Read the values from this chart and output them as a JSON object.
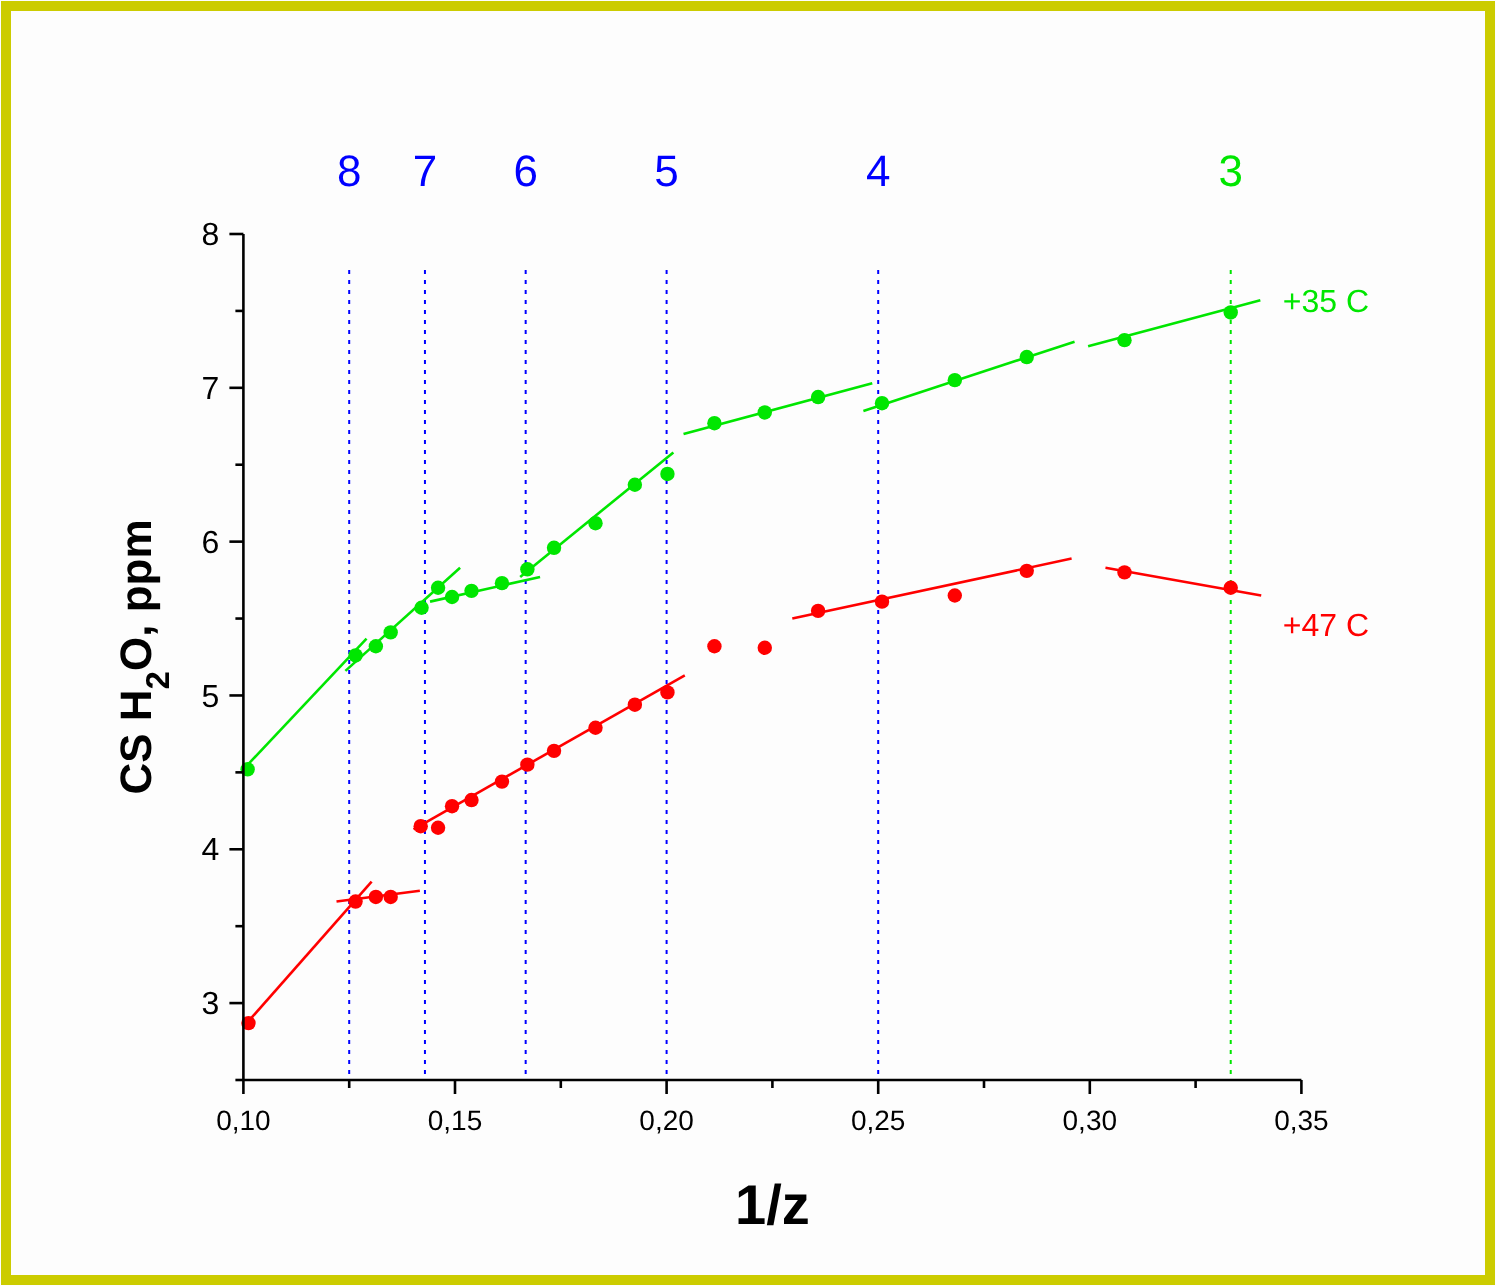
{
  "chart_data": {
    "type": "scatter",
    "xlabel": "1/z",
    "ylabel": "CS H$_{2}$O,  ppm",
    "xlim": [
      0.1,
      0.35
    ],
    "ylim": [
      2.5,
      8
    ],
    "xticks": [
      {
        "value": 0.1,
        "label": "0,10"
      },
      {
        "value": 0.125,
        "label": null
      },
      {
        "value": 0.15,
        "label": "0,15"
      },
      {
        "value": 0.175,
        "label": null
      },
      {
        "value": 0.2,
        "label": "0,20"
      },
      {
        "value": 0.225,
        "label": null
      },
      {
        "value": 0.25,
        "label": "0,25"
      },
      {
        "value": 0.275,
        "label": null
      },
      {
        "value": 0.3,
        "label": "0,30"
      },
      {
        "value": 0.325,
        "label": null
      },
      {
        "value": 0.35,
        "label": "0,35"
      }
    ],
    "yticks": [
      {
        "value": 2.5,
        "label": null
      },
      3,
      {
        "value": 3.5,
        "label": null
      },
      4,
      {
        "value": 4.5,
        "label": null
      },
      5,
      {
        "value": 5.5,
        "label": null
      },
      6,
      {
        "value": 6.5,
        "label": null
      },
      7,
      {
        "value": 7.5,
        "label": null
      },
      8
    ],
    "grid": false,
    "marker": "circle",
    "annotations": [
      "8",
      "7",
      "6",
      "5",
      "4",
      "3"
    ],
    "series": [
      {
        "name": "+35 C",
        "color": "#00e600",
        "x": [
          0.101,
          0.1265,
          0.1313,
          0.1348,
          0.1421,
          0.146,
          0.1493,
          0.1539,
          0.1611,
          0.1671,
          0.1734,
          0.1832,
          0.1925,
          0.2002,
          0.2113,
          0.2232,
          0.2358,
          0.2509,
          0.2681,
          0.2851,
          0.3082,
          0.3333
        ],
        "values": [
          4.52,
          5.26,
          5.32,
          5.41,
          5.57,
          5.7,
          5.64,
          5.68,
          5.73,
          5.82,
          5.96,
          6.12,
          6.37,
          6.44,
          6.77,
          6.84,
          6.94,
          6.9,
          7.05,
          7.2,
          7.31,
          7.49
        ]
      },
      {
        "name": "+47 C",
        "color": "#ff0000",
        "x": [
          0.1012,
          0.1265,
          0.1313,
          0.1348,
          0.1419,
          0.146,
          0.1493,
          0.1539,
          0.1611,
          0.1671,
          0.1734,
          0.1832,
          0.1925,
          0.2002,
          0.2113,
          0.2232,
          0.2358,
          0.2509,
          0.2681,
          0.2851,
          0.3082,
          0.3333
        ],
        "values": [
          2.87,
          3.66,
          3.69,
          3.69,
          4.15,
          4.14,
          4.28,
          4.32,
          4.44,
          4.55,
          4.64,
          4.79,
          4.94,
          5.02,
          5.32,
          5.31,
          5.55,
          5.61,
          5.65,
          5.81,
          5.8,
          5.7
        ]
      },
      {
        "type": "line",
        "marker": "none",
        "color": "#00e600",
        "x": [
          0.1,
          0.1291
        ],
        "values": [
          4.52,
          5.37
        ]
      },
      {
        "type": "line",
        "marker": "none",
        "color": "#00e600",
        "x": [
          0.1241,
          0.1512
        ],
        "values": [
          5.16,
          5.83
        ]
      },
      {
        "type": "line",
        "marker": "none",
        "color": "#00e600",
        "x": [
          0.1441,
          0.1701
        ],
        "values": [
          5.61,
          5.77
        ]
      },
      {
        "type": "line",
        "marker": "none",
        "color": "#00e600",
        "x": [
          0.1654,
          0.2016
        ],
        "values": [
          5.77,
          6.58
        ]
      },
      {
        "type": "line",
        "marker": "none",
        "color": "#00e600",
        "x": [
          0.204,
          0.2486
        ],
        "values": [
          6.7,
          7.03
        ]
      },
      {
        "type": "line",
        "marker": "none",
        "color": "#00e600",
        "x": [
          0.2465,
          0.2964
        ],
        "values": [
          6.85,
          7.3
        ]
      },
      {
        "type": "line",
        "marker": "none",
        "color": "#00e600",
        "x": [
          0.2996,
          0.3403
        ],
        "values": [
          7.27,
          7.57
        ]
      },
      {
        "type": "line",
        "marker": "none",
        "color": "#ff0000",
        "x": [
          0.1008,
          0.1303
        ],
        "values": [
          2.87,
          3.79
        ]
      },
      {
        "type": "line",
        "marker": "none",
        "color": "#ff0000",
        "x": [
          0.122,
          0.1417
        ],
        "values": [
          3.66,
          3.73
        ]
      },
      {
        "type": "line",
        "marker": "none",
        "color": "#ff0000",
        "x": [
          0.1402,
          0.2043
        ],
        "values": [
          4.13,
          5.13
        ]
      },
      {
        "type": "line",
        "marker": "none",
        "color": "#ff0000",
        "x": [
          0.2297,
          0.2957
        ],
        "values": [
          5.5,
          5.89
        ]
      },
      {
        "type": "line",
        "marker": "none",
        "color": "#ff0000",
        "x": [
          0.3037,
          0.3405
        ],
        "values": [
          5.83,
          5.65
        ]
      }
    ],
    "ref_lines": [
      {
        "axis": "x",
        "value": 0.125,
        "color": "#0000ff",
        "line_style": "dotted"
      },
      {
        "axis": "x",
        "value": 0.1429,
        "color": "#0000ff",
        "line_style": "dotted"
      },
      {
        "axis": "x",
        "value": 0.1667,
        "color": "#0000ff",
        "line_style": "dotted"
      },
      {
        "axis": "x",
        "value": 0.2,
        "color": "#0000ff",
        "line_style": "dotted"
      },
      {
        "axis": "x",
        "value": 0.25,
        "color": "#0000ff",
        "line_style": "dotted"
      },
      {
        "axis": "x",
        "value": 0.3333,
        "color": "#00e600",
        "line_style": "dotted"
      }
    ]
  }
}
